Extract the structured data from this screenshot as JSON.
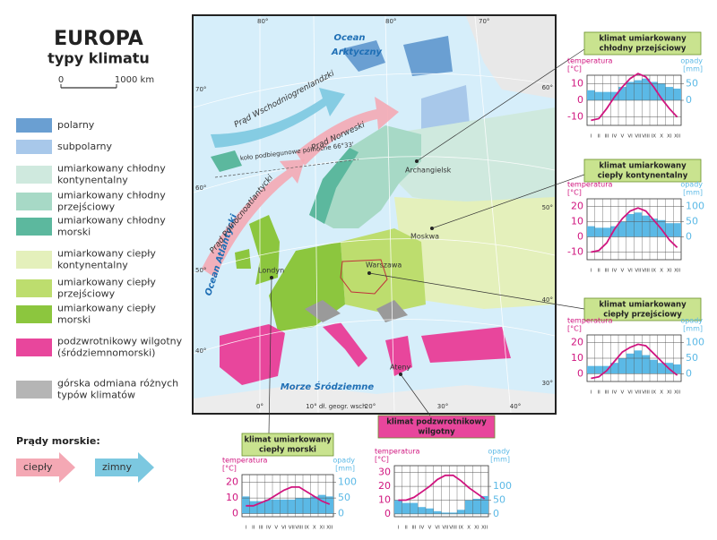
{
  "header": {
    "title": "EUROPA",
    "subtitle": "typy klimatu"
  },
  "scale": {
    "zero": "0",
    "length": "1000 km"
  },
  "legend": {
    "items": [
      {
        "color": "#6a9fd2",
        "lines": [
          "polarny"
        ]
      },
      {
        "color": "#a8c8ea",
        "lines": [
          "subpolarny"
        ]
      },
      {
        "color": "#cfe9de",
        "lines": [
          "umiarkowany chłodny",
          "kontynentalny"
        ]
      },
      {
        "color": "#a7d9c6",
        "lines": [
          "umiarkowany chłodny",
          "przejściowy"
        ]
      },
      {
        "color": "#5cb89e",
        "lines": [
          "umiarkowany chłodny",
          "morski"
        ]
      },
      {
        "color": "#e4f0bb",
        "lines": [
          "umiarkowany ciepły",
          "kontynentalny"
        ]
      },
      {
        "color": "#bddd6e",
        "lines": [
          "umiarkowany ciepły",
          "przejściowy"
        ]
      },
      {
        "color": "#8cc63e",
        "lines": [
          "umiarkowany ciepły",
          "morski"
        ]
      },
      {
        "color": "#e8469c",
        "lines": [
          "podzwrotnikowy wilgotny",
          "(śródziemnomorski)"
        ]
      },
      {
        "color": "#b5b5b5",
        "lines": [
          "górska odmiana różnych",
          "typów klimatów"
        ]
      }
    ]
  },
  "currents": {
    "title": "Prądy morskie:",
    "items": [
      {
        "label": "ciepły",
        "color": "#f4a8b4"
      },
      {
        "label": "zimny",
        "color": "#7cc8e0"
      }
    ]
  },
  "map": {
    "oceans": [
      "Ocean",
      "Arktyczny",
      "Ocean Atlantycki",
      "Morze Śródziemne"
    ],
    "currents": [
      "Prąd Wschodniogrenlandzki",
      "Prąd Norweski",
      "Prąd Północnoatlantycki"
    ],
    "circle": "koło podbiegunowe północne 66°33'",
    "cities": [
      "Archangielsk",
      "Moskwa",
      "Warszawa",
      "Londyn",
      "Ateny"
    ],
    "meridian": "10° dł. geogr. wsch.",
    "degrees_top": [
      "80°",
      "80°",
      "70°"
    ],
    "degrees_left": [
      "70°",
      "60°",
      "50°",
      "40°"
    ],
    "degrees_right": [
      "60°",
      "50°",
      "40°",
      "30°"
    ],
    "degrees_bottom": [
      "0°",
      "20°",
      "30°",
      "40°"
    ]
  },
  "chart_data": [
    {
      "type": "climograph",
      "title": [
        "klimat umiarkowany",
        "chłodny przejściowy"
      ],
      "title_color": "#c9e38f",
      "ylabel": "temperatura",
      "yunit": "[°C]",
      "y2label": "opady",
      "y2unit": "[mm]",
      "categories": [
        "I",
        "II",
        "III",
        "IV",
        "V",
        "VI",
        "VII",
        "VIII",
        "IX",
        "X",
        "XI",
        "XII"
      ],
      "ylim": [
        -15,
        15
      ],
      "yticks": [
        -10,
        0,
        10
      ],
      "y2lim": [
        -75,
        75
      ],
      "y2ticks": [
        0,
        50
      ],
      "series": [
        {
          "axis": "y",
          "color": "#d0157f",
          "values": [
            -12,
            -11,
            -5,
            2,
            8,
            13,
            16,
            14,
            8,
            1,
            -5,
            -10
          ]
        },
        {
          "axis": "y2",
          "color": "#5bb9e6",
          "values": [
            30,
            25,
            25,
            25,
            40,
            55,
            60,
            65,
            55,
            50,
            40,
            35
          ]
        }
      ]
    },
    {
      "type": "climograph",
      "title": [
        "klimat umiarkowany",
        "ciepły kontynentalny"
      ],
      "title_color": "#c9e38f",
      "ylabel": "temperatura",
      "yunit": "[°C]",
      "y2label": "opady",
      "y2unit": "[mm]",
      "categories": [
        "I",
        "II",
        "III",
        "IV",
        "V",
        "VI",
        "VII",
        "VIII",
        "IX",
        "X",
        "XI",
        "XII"
      ],
      "ylim": [
        -15,
        25
      ],
      "yticks": [
        -10,
        0,
        10,
        20
      ],
      "y2lim": [
        -75,
        125
      ],
      "y2ticks": [
        0,
        50,
        100
      ],
      "series": [
        {
          "axis": "y",
          "color": "#d0157f",
          "values": [
            -10,
            -9,
            -4,
            5,
            12,
            17,
            19,
            17,
            11,
            5,
            -2,
            -7
          ]
        },
        {
          "axis": "y2",
          "color": "#5bb9e6",
          "values": [
            35,
            30,
            30,
            35,
            50,
            75,
            80,
            70,
            60,
            55,
            45,
            45
          ]
        }
      ]
    },
    {
      "type": "climograph",
      "title": [
        "klimat umiarkowany",
        "ciepły przejściowy"
      ],
      "title_color": "#c9e38f",
      "ylabel": "temperatura",
      "yunit": "[°C]",
      "y2label": "opady",
      "y2unit": "[mm]",
      "categories": [
        "I",
        "II",
        "III",
        "IV",
        "V",
        "VI",
        "VII",
        "VIII",
        "IX",
        "X",
        "XI",
        "XII"
      ],
      "ylim": [
        -5,
        25
      ],
      "yticks": [
        0,
        10,
        20
      ],
      "y2lim": [
        -25,
        125
      ],
      "y2ticks": [
        0,
        50,
        100
      ],
      "series": [
        {
          "axis": "y",
          "color": "#d0157f",
          "values": [
            -3,
            -2,
            2,
            8,
            14,
            17,
            19,
            18,
            13,
            8,
            3,
            -1
          ]
        },
        {
          "axis": "y2",
          "color": "#5bb9e6",
          "values": [
            25,
            25,
            25,
            35,
            50,
            65,
            75,
            60,
            45,
            35,
            35,
            30
          ]
        }
      ]
    },
    {
      "type": "climograph",
      "title": [
        "klimat umiarkowany",
        "ciepły morski"
      ],
      "title_color": "#c9e38f",
      "ylabel": "temperatura",
      "yunit": "[°C]",
      "y2label": "opady",
      "y2unit": "[mm]",
      "categories": [
        "I",
        "II",
        "III",
        "IV",
        "V",
        "VI",
        "VII",
        "VIII",
        "IX",
        "X",
        "XI",
        "XII"
      ],
      "ylim": [
        -2,
        25
      ],
      "yticks": [
        0,
        10,
        20
      ],
      "y2lim": [
        -10,
        125
      ],
      "y2ticks": [
        0,
        50,
        100
      ],
      "series": [
        {
          "axis": "y",
          "color": "#d0157f",
          "values": [
            5,
            5,
            7,
            9,
            12,
            15,
            17,
            17,
            14,
            11,
            8,
            6
          ]
        },
        {
          "axis": "y2",
          "color": "#5bb9e6",
          "values": [
            55,
            40,
            40,
            45,
            45,
            45,
            45,
            50,
            50,
            55,
            60,
            55
          ]
        }
      ]
    },
    {
      "type": "climograph",
      "title": [
        "klimat podzwrotnikowy",
        "wilgotny"
      ],
      "title_color": "#e8469c",
      "ylabel": "temperatura",
      "yunit": "[°C]",
      "y2label": "opady",
      "y2unit": "[mm]",
      "categories": [
        "I",
        "II",
        "III",
        "IV",
        "V",
        "VI",
        "VII",
        "VIII",
        "IX",
        "X",
        "XI",
        "XII"
      ],
      "ylim": [
        -2,
        35
      ],
      "yticks": [
        0,
        10,
        20,
        30
      ],
      "y2lim": [
        -10,
        175
      ],
      "y2ticks": [
        0,
        50,
        100
      ],
      "series": [
        {
          "axis": "y",
          "color": "#d0157f",
          "values": [
            10,
            10,
            12,
            16,
            20,
            25,
            28,
            28,
            24,
            19,
            15,
            11
          ]
        },
        {
          "axis": "y2",
          "color": "#5bb9e6",
          "values": [
            50,
            40,
            40,
            25,
            20,
            10,
            5,
            5,
            15,
            50,
            55,
            65
          ]
        }
      ]
    }
  ]
}
